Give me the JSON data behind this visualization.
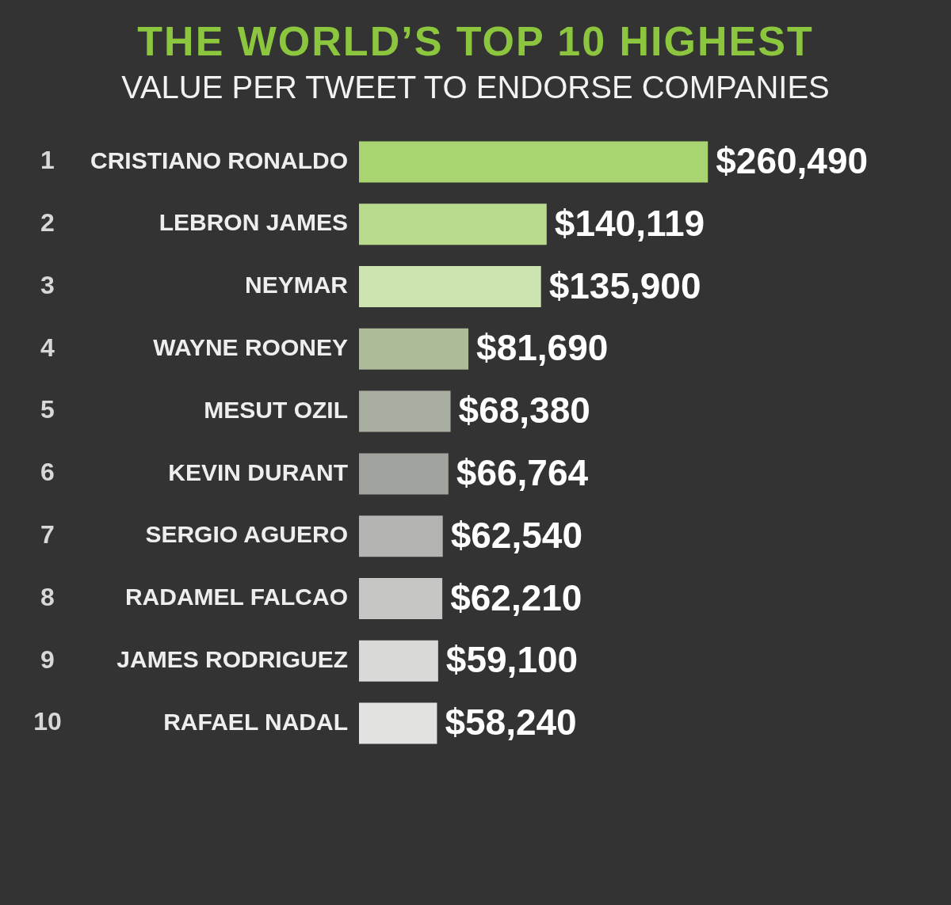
{
  "chart_data": {
    "type": "bar",
    "orientation": "horizontal",
    "title": "THE WORLD’S TOP 10 HIGHEST",
    "subtitle": "VALUE PER TWEET TO ENDORSE COMPANIES",
    "categories": [
      "CRISTIANO RONALDO",
      "LEBRON JAMES",
      "NEYMAR",
      "WAYNE ROONEY",
      "MESUT OZIL",
      "KEVIN DURANT",
      "SERGIO AGUERO",
      "RADAMEL FALCAO",
      "JAMES RODRIGUEZ",
      "RAFAEL NADAL"
    ],
    "values": [
      260490,
      140119,
      135900,
      81690,
      68380,
      66764,
      62540,
      62210,
      59100,
      58240
    ],
    "value_labels": [
      "$260,490",
      "$140,119",
      "$135,900",
      "$81,690",
      "$68,380",
      "$66,764",
      "$62,540",
      "$62,210",
      "$59,100",
      "$58,240"
    ],
    "colors": [
      "#a9d472",
      "#b8da8c",
      "#cde3b0",
      "#aebb98",
      "#a7ae9f",
      "#a0a39e",
      "#b4b4b2",
      "#c6c6c4",
      "#d9d9d7",
      "#e2e2e0"
    ],
    "annotations": [
      "1",
      "2",
      "3",
      "4",
      "5",
      "6",
      "7",
      "8",
      "9",
      "10"
    ],
    "grid": false,
    "legend": false
  }
}
